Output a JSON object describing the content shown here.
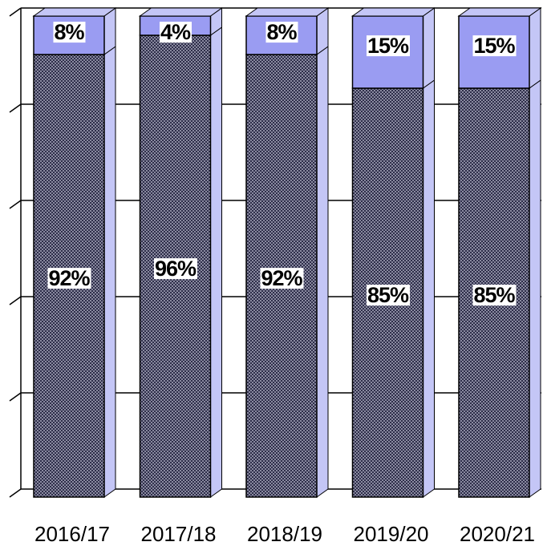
{
  "chart_data": {
    "type": "bar",
    "stacked": true,
    "categories": [
      "2016/17",
      "2017/18",
      "2018/19",
      "2019/20",
      "2020/21"
    ],
    "series": [
      {
        "color": "#2e2e4a",
        "values": [
          92,
          96,
          92,
          85,
          85
        ],
        "value_labels": [
          "92%",
          "96%",
          "92%",
          "85%",
          "85%"
        ]
      },
      {
        "color": "#9a9cf2",
        "values": [
          8,
          4,
          8,
          15,
          15
        ],
        "value_labels": [
          "8%",
          "4%",
          "8%",
          "15%",
          "15%"
        ]
      }
    ],
    "ylim": [
      0,
      100
    ],
    "yticks": [
      0,
      20,
      40,
      60,
      80,
      100
    ],
    "grid": true
  }
}
